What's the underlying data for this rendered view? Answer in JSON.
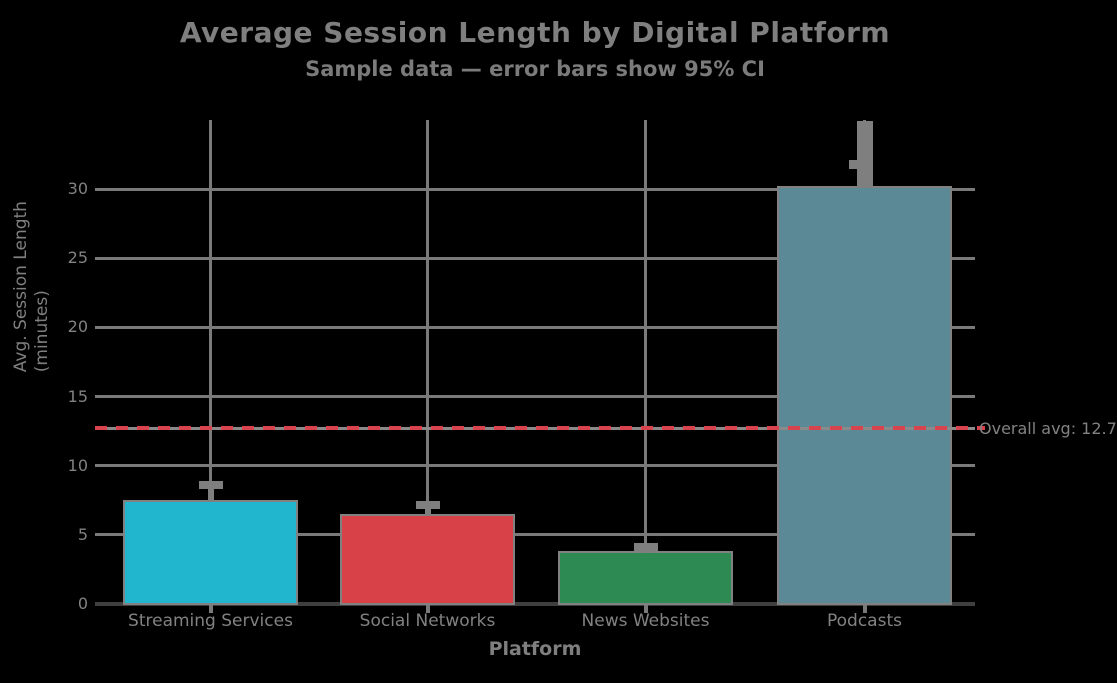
{
  "chart": {
    "title": "Average Session Length by Digital Platform",
    "subtitle": "Sample data — error bars show 95% CI",
    "x_axis_label": "Platform",
    "y_axis_label_line1": "Avg. Session Length",
    "y_axis_label_line2": "(minutes)",
    "reference_annotation": "Overall avg: 12.7"
  },
  "chart_data": {
    "type": "bar",
    "title": "Average Session Length by Digital Platform",
    "subtitle": "Sample data — error bars show 95% CI",
    "xlabel": "Platform",
    "ylabel": "Avg. Session Length (minutes)",
    "categories": [
      "Streaming Services",
      "Social Networks",
      "News Websites",
      "Podcasts"
    ],
    "values": [
      7.5,
      6.5,
      3.8,
      30.2
    ],
    "errors": [
      1.2,
      0.7,
      0.4,
      4.7
    ],
    "bar_colors": [
      "#22b5ce",
      "#d84148",
      "#2d8a53",
      "#5b8995"
    ],
    "yticks": [
      0,
      5,
      10,
      15,
      20,
      25,
      30
    ],
    "ylim": [
      0,
      35
    ],
    "grid": true,
    "legend": "none",
    "reference_line": {
      "value": 12.7,
      "style": "dashed",
      "color": "#d9434e",
      "label": "Overall avg: 12.7"
    }
  },
  "colors": {
    "background": "#000000",
    "text": "#828282",
    "gridline": "#7a7a7a",
    "axis_line": "#3f3f3f",
    "bar_edge": "#818181",
    "error_bar": "#7f7f7f",
    "reference": "#d9434e"
  }
}
